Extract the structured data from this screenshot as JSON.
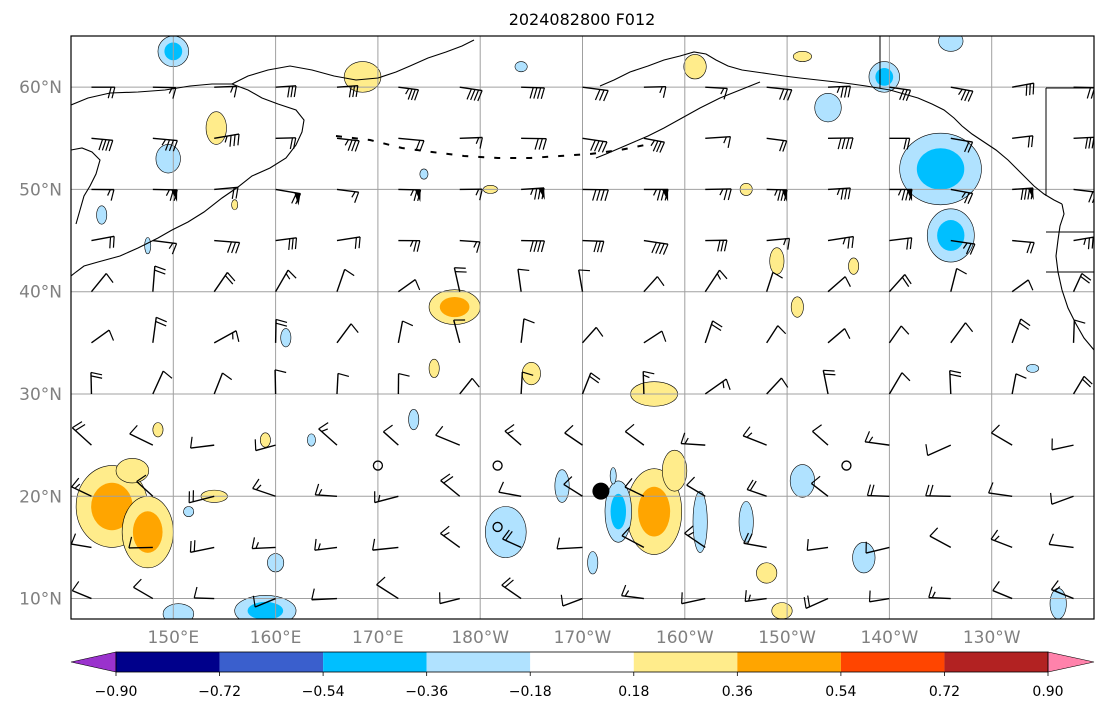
{
  "title": "2024082800 F012",
  "map": {
    "lon_labels": [
      "150°E",
      "160°E",
      "170°E",
      "180°W",
      "170°W",
      "160°W",
      "150°W",
      "140°W",
      "130°W"
    ],
    "lat_labels": [
      "60°N",
      "50°N",
      "40°N",
      "30°N",
      "20°N",
      "10°N"
    ],
    "lon_range": [
      140,
      240
    ],
    "lat_range": [
      8,
      65
    ],
    "grid": true,
    "gridline_lons": [
      150,
      160,
      170,
      180,
      190,
      200,
      210,
      220,
      230
    ],
    "gridline_lats": [
      10,
      20,
      30,
      40,
      50,
      60
    ],
    "storm_marker_lonlat": [
      191.8,
      20.5
    ],
    "positive_areas": [
      {
        "lon": 144,
        "lat": 19,
        "rx": 3.5,
        "ry": 4,
        "level": 2
      },
      {
        "lon": 147.5,
        "lat": 16.5,
        "rx": 2.5,
        "ry": 3.5,
        "level": 2
      },
      {
        "lon": 177.5,
        "lat": 38.5,
        "rx": 2.5,
        "ry": 1.7,
        "level": 2
      },
      {
        "lon": 197,
        "lat": 18.5,
        "rx": 2.7,
        "ry": 4.2,
        "level": 2
      },
      {
        "lon": 197,
        "lat": 30,
        "rx": 2.3,
        "ry": 1.2,
        "level": 1
      },
      {
        "lon": 168.5,
        "lat": 61,
        "rx": 1.8,
        "ry": 1.5,
        "level": 1
      },
      {
        "lon": 154.2,
        "lat": 56,
        "rx": 1,
        "ry": 1.6,
        "level": 1
      },
      {
        "lon": 146,
        "lat": 22.5,
        "rx": 1.6,
        "ry": 1.2,
        "level": 1
      },
      {
        "lon": 154,
        "lat": 20,
        "rx": 1.3,
        "ry": 0.6,
        "level": 1
      },
      {
        "lon": 199,
        "lat": 22.5,
        "rx": 1.2,
        "ry": 2,
        "level": 1
      },
      {
        "lon": 201,
        "lat": 62,
        "rx": 1.1,
        "ry": 1.2,
        "level": 1
      },
      {
        "lon": 159,
        "lat": 25.5,
        "rx": 0.5,
        "ry": 0.7,
        "level": 1
      },
      {
        "lon": 175.5,
        "lat": 32.5,
        "rx": 0.5,
        "ry": 0.9,
        "level": 1
      },
      {
        "lon": 185,
        "lat": 32,
        "rx": 0.9,
        "ry": 1.1,
        "level": 1
      },
      {
        "lon": 209,
        "lat": 43,
        "rx": 0.7,
        "ry": 1.3,
        "level": 1
      },
      {
        "lon": 211,
        "lat": 38.5,
        "rx": 0.6,
        "ry": 1,
        "level": 1
      },
      {
        "lon": 216.5,
        "lat": 42.5,
        "rx": 0.5,
        "ry": 0.8,
        "level": 1
      },
      {
        "lon": 208,
        "lat": 12.5,
        "rx": 1,
        "ry": 1,
        "level": 1
      },
      {
        "lon": 209.5,
        "lat": 8.8,
        "rx": 1,
        "ry": 0.8,
        "level": 1
      },
      {
        "lon": 148.5,
        "lat": 26.5,
        "rx": 0.5,
        "ry": 0.7,
        "level": 1
      },
      {
        "lon": 181,
        "lat": 50,
        "rx": 0.7,
        "ry": 0.4,
        "level": 1
      },
      {
        "lon": 206,
        "lat": 50,
        "rx": 0.6,
        "ry": 0.6,
        "level": 1
      },
      {
        "lon": 211.5,
        "lat": 63,
        "rx": 0.9,
        "ry": 0.5,
        "level": 1
      },
      {
        "lon": 156,
        "lat": 48.5,
        "rx": 0.3,
        "ry": 0.5,
        "level": 1
      }
    ],
    "negative_areas": [
      {
        "lon": 225,
        "lat": 52,
        "rx": 4,
        "ry": 3.5,
        "level": 2
      },
      {
        "lon": 226,
        "lat": 45.5,
        "rx": 2.3,
        "ry": 2.6,
        "level": 2
      },
      {
        "lon": 193.5,
        "lat": 18.5,
        "rx": 1.3,
        "ry": 3,
        "level": 2
      },
      {
        "lon": 182.5,
        "lat": 16.5,
        "rx": 2,
        "ry": 2.5,
        "level": 1
      },
      {
        "lon": 159,
        "lat": 8.8,
        "rx": 3,
        "ry": 1.5,
        "level": 2
      },
      {
        "lon": 150,
        "lat": 63.5,
        "rx": 1.5,
        "ry": 1.5,
        "level": 2
      },
      {
        "lon": 219.5,
        "lat": 61,
        "rx": 1.5,
        "ry": 1.5,
        "level": 2
      },
      {
        "lon": 214,
        "lat": 58,
        "rx": 1.3,
        "ry": 1.4,
        "level": 1
      },
      {
        "lon": 149.5,
        "lat": 53,
        "rx": 1.2,
        "ry": 1.4,
        "level": 1
      },
      {
        "lon": 201.5,
        "lat": 17.5,
        "rx": 0.7,
        "ry": 3,
        "level": 1
      },
      {
        "lon": 211.5,
        "lat": 21.5,
        "rx": 1.2,
        "ry": 1.6,
        "level": 1
      },
      {
        "lon": 217.5,
        "lat": 14,
        "rx": 1.1,
        "ry": 1.5,
        "level": 1
      },
      {
        "lon": 236.5,
        "lat": 9.5,
        "rx": 0.8,
        "ry": 1.5,
        "level": 1
      },
      {
        "lon": 150.5,
        "lat": 8.5,
        "rx": 1.5,
        "ry": 1,
        "level": 1
      },
      {
        "lon": 160,
        "lat": 13.5,
        "rx": 0.8,
        "ry": 0.9,
        "level": 1
      },
      {
        "lon": 184,
        "lat": 62,
        "rx": 0.6,
        "ry": 0.5,
        "level": 1
      },
      {
        "lon": 188,
        "lat": 21,
        "rx": 0.7,
        "ry": 1.6,
        "level": 1
      },
      {
        "lon": 191,
        "lat": 13.5,
        "rx": 0.5,
        "ry": 1.1,
        "level": 1
      },
      {
        "lon": 193,
        "lat": 22,
        "rx": 0.3,
        "ry": 0.8,
        "level": 1
      },
      {
        "lon": 147.5,
        "lat": 44.5,
        "rx": 0.3,
        "ry": 0.8,
        "level": 1
      },
      {
        "lon": 151.5,
        "lat": 18.5,
        "rx": 0.5,
        "ry": 0.5,
        "level": 1
      },
      {
        "lon": 161,
        "lat": 35.5,
        "rx": 0.5,
        "ry": 0.9,
        "level": 1
      },
      {
        "lon": 163.5,
        "lat": 25.5,
        "rx": 0.4,
        "ry": 0.6,
        "level": 1
      },
      {
        "lon": 173.5,
        "lat": 27.5,
        "rx": 0.5,
        "ry": 1,
        "level": 1
      },
      {
        "lon": 174.5,
        "lat": 51.5,
        "rx": 0.4,
        "ry": 0.5,
        "level": 1
      },
      {
        "lon": 143,
        "lat": 47.5,
        "rx": 0.5,
        "ry": 0.9,
        "level": 1
      },
      {
        "lon": 206,
        "lat": 17.5,
        "rx": 0.7,
        "ry": 2,
        "level": 1
      },
      {
        "lon": 234,
        "lat": 32.5,
        "rx": 0.6,
        "ry": 0.4,
        "level": 1
      },
      {
        "lon": 226,
        "lat": 64.5,
        "rx": 1.2,
        "ry": 1,
        "level": 1
      }
    ]
  },
  "colorbar": {
    "tick_labels": [
      "−0.90",
      "−0.72",
      "−0.54",
      "−0.36",
      "−0.18",
      "0.18",
      "0.36",
      "0.54",
      "0.72",
      "0.90"
    ],
    "colors": [
      "#9a32cd",
      "#00008b",
      "#3a5fcd",
      "#00bfff",
      "#b0e2ff",
      "#ffffff",
      "#ffec8b",
      "#ffa500",
      "#ff4500",
      "#b22222",
      "#ff82ab"
    ]
  }
}
